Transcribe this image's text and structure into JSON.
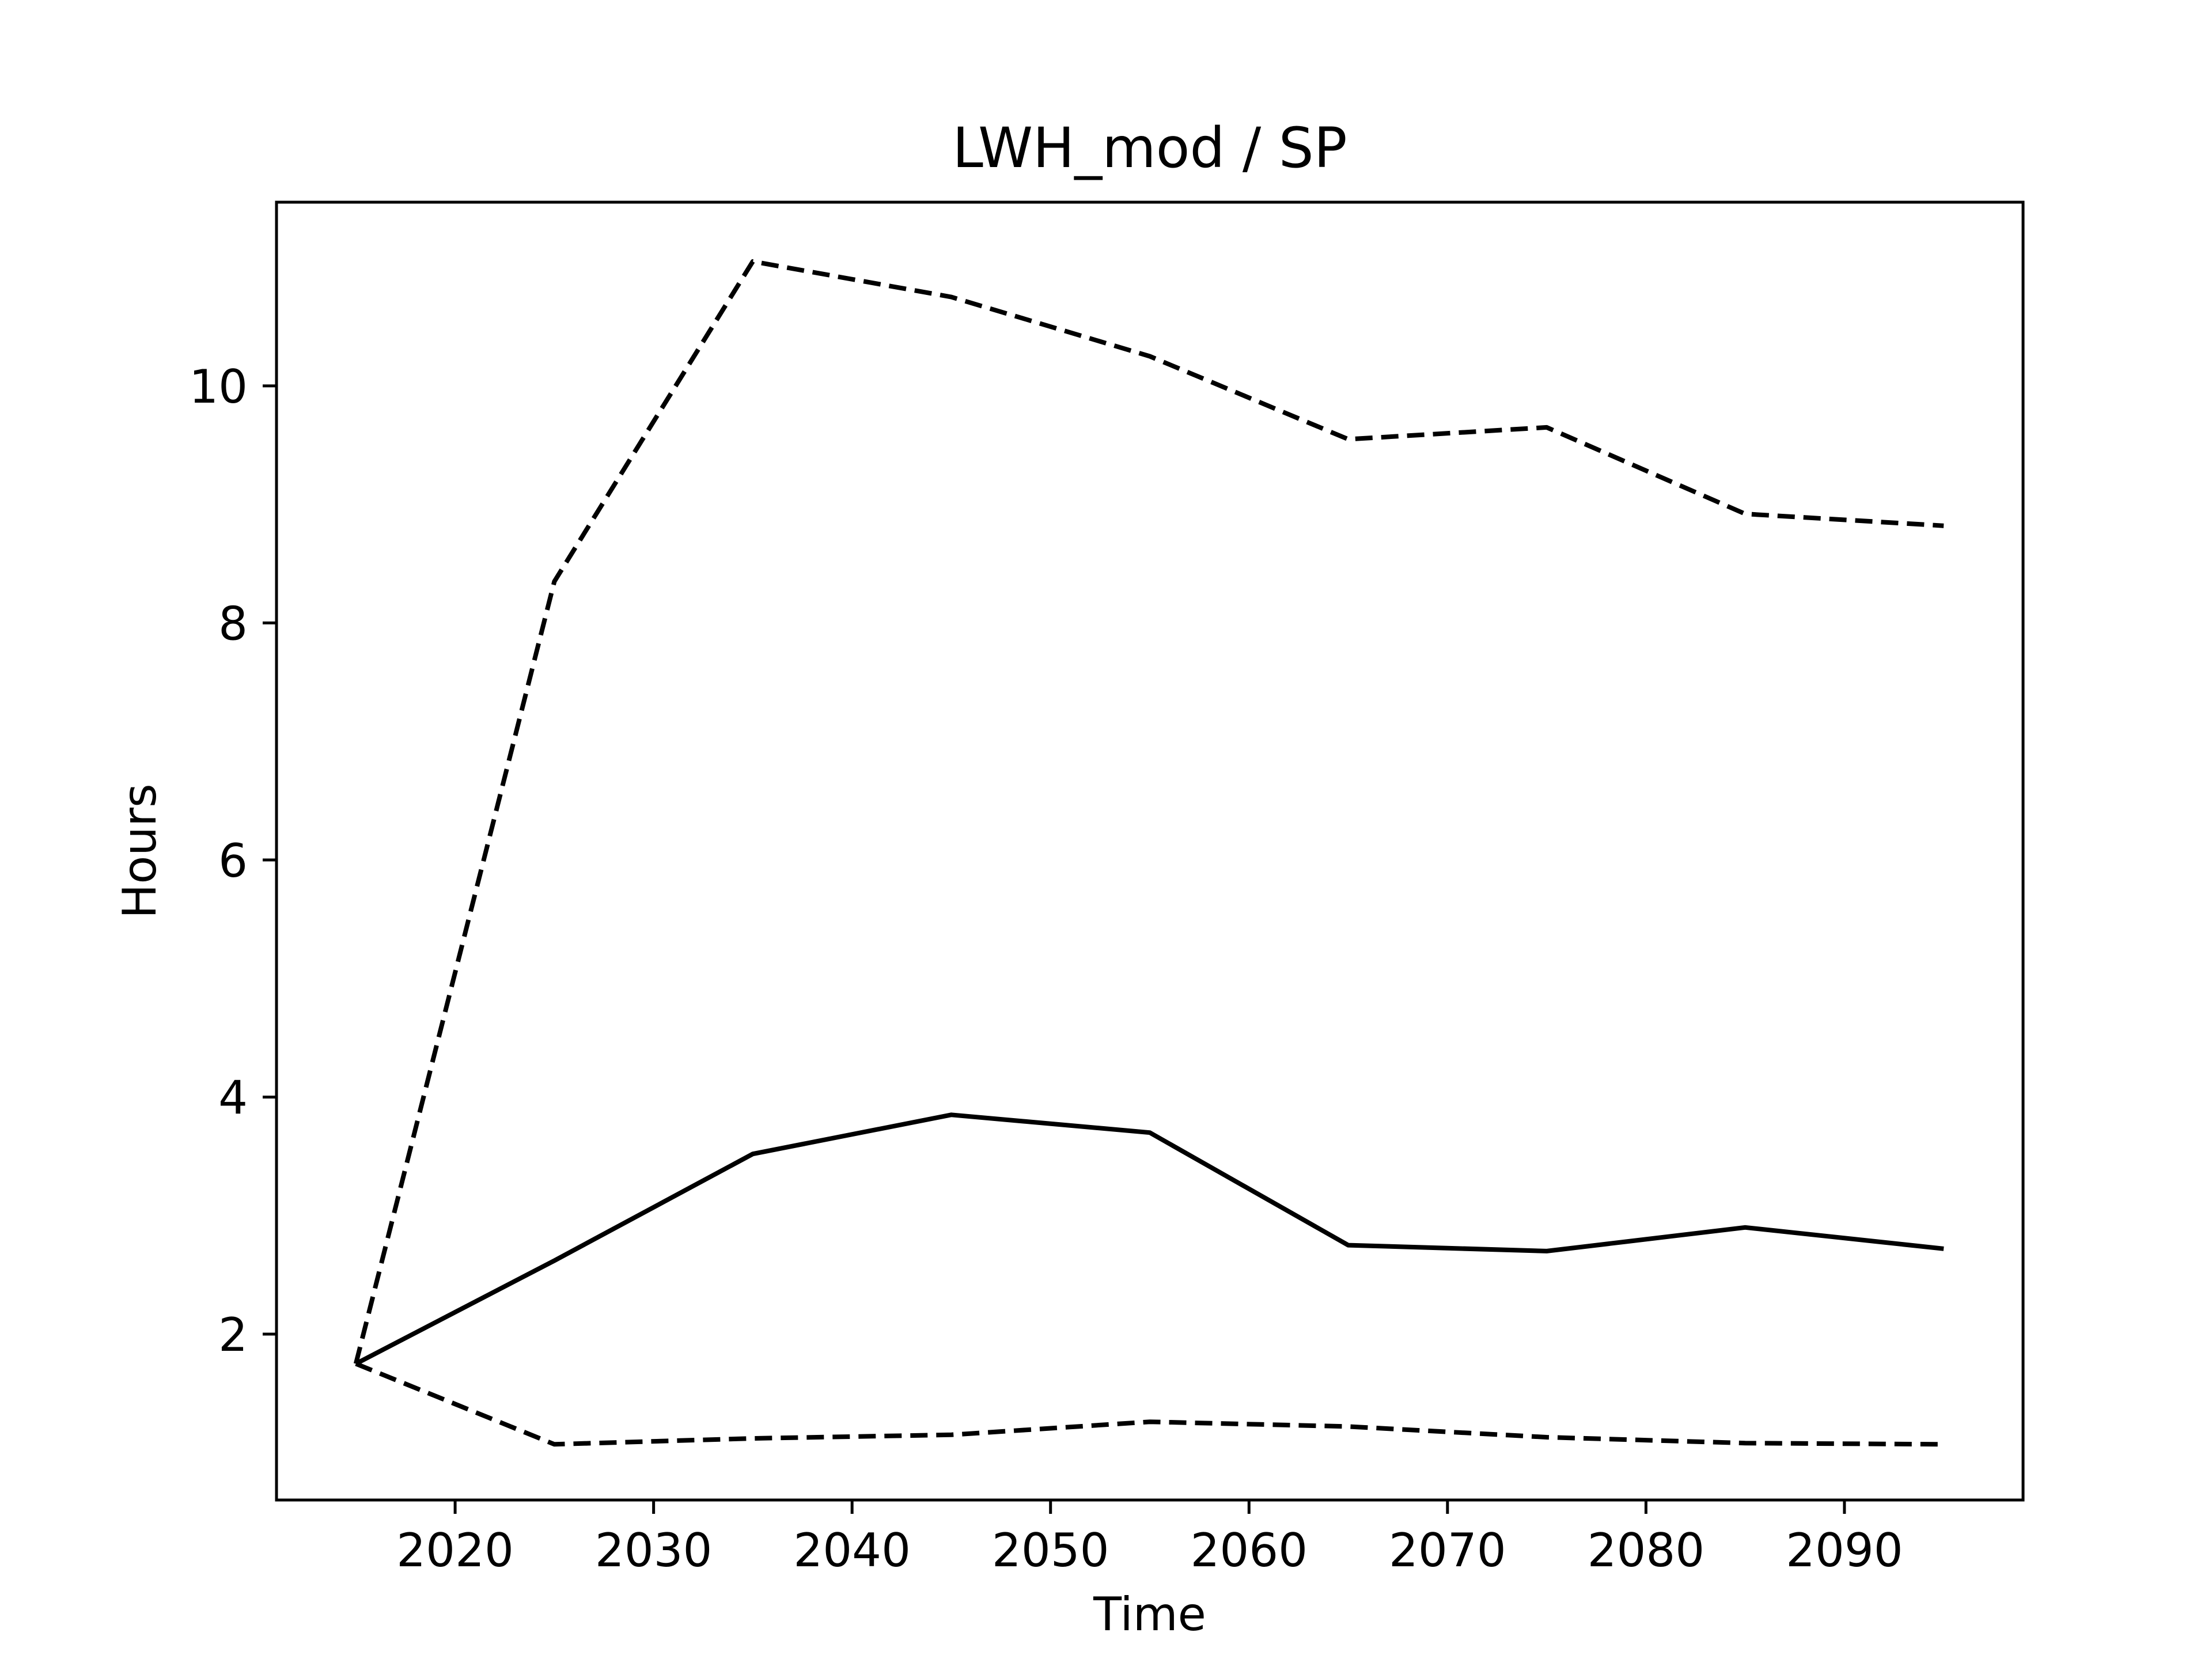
{
  "chart_data": {
    "type": "line",
    "title": "LWH_mod / SP",
    "xlabel": "Time",
    "ylabel": "Hours",
    "x": [
      2015,
      2025,
      2035,
      2045,
      2055,
      2065,
      2075,
      2085,
      2095
    ],
    "xlim": [
      2011,
      2099
    ],
    "ylim": [
      0.6,
      11.55
    ],
    "xticks": [
      2020,
      2030,
      2040,
      2050,
      2060,
      2070,
      2080,
      2090
    ],
    "yticks": [
      2,
      4,
      6,
      8,
      10
    ],
    "grid": false,
    "series": [
      {
        "style": "dashed",
        "color": "#000000",
        "values": [
          1.75,
          8.35,
          11.05,
          10.75,
          10.25,
          9.55,
          9.65,
          8.92,
          8.82
        ]
      },
      {
        "style": "solid",
        "color": "#000000",
        "values": [
          1.75,
          2.62,
          3.52,
          3.85,
          3.7,
          2.75,
          2.7,
          2.9,
          2.72
        ]
      },
      {
        "style": "dashed",
        "color": "#000000",
        "values": [
          1.75,
          1.07,
          1.12,
          1.15,
          1.26,
          1.22,
          1.13,
          1.08,
          1.07
        ]
      }
    ]
  }
}
